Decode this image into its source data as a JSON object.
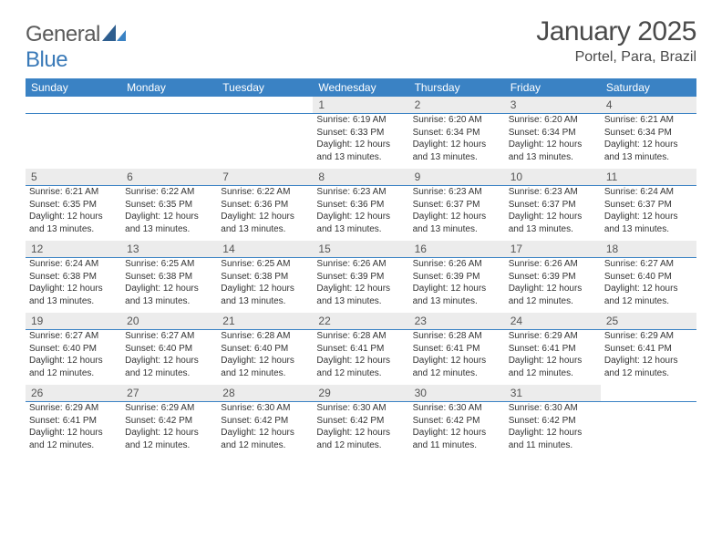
{
  "brand": {
    "name_a": "General",
    "name_b": "Blue"
  },
  "title": "January 2025",
  "location": "Portel, Para, Brazil",
  "colors": {
    "header_bg": "#3a82c4",
    "header_text": "#ffffff",
    "daynum_bg": "#ececec",
    "rule": "#3a82c4",
    "text": "#333333",
    "brand_gray": "#5a5a5a",
    "brand_blue": "#3a7ab8"
  },
  "typography": {
    "title_fontsize": 30,
    "location_fontsize": 16,
    "dayhead_fontsize": 12,
    "daynum_fontsize": 12,
    "cell_fontsize": 10
  },
  "day_headers": [
    "Sunday",
    "Monday",
    "Tuesday",
    "Wednesday",
    "Thursday",
    "Friday",
    "Saturday"
  ],
  "weeks": [
    [
      null,
      null,
      null,
      {
        "n": "1",
        "sr": "6:19 AM",
        "ss": "6:33 PM",
        "dl": "12 hours and 13 minutes."
      },
      {
        "n": "2",
        "sr": "6:20 AM",
        "ss": "6:34 PM",
        "dl": "12 hours and 13 minutes."
      },
      {
        "n": "3",
        "sr": "6:20 AM",
        "ss": "6:34 PM",
        "dl": "12 hours and 13 minutes."
      },
      {
        "n": "4",
        "sr": "6:21 AM",
        "ss": "6:34 PM",
        "dl": "12 hours and 13 minutes."
      }
    ],
    [
      {
        "n": "5",
        "sr": "6:21 AM",
        "ss": "6:35 PM",
        "dl": "12 hours and 13 minutes."
      },
      {
        "n": "6",
        "sr": "6:22 AM",
        "ss": "6:35 PM",
        "dl": "12 hours and 13 minutes."
      },
      {
        "n": "7",
        "sr": "6:22 AM",
        "ss": "6:36 PM",
        "dl": "12 hours and 13 minutes."
      },
      {
        "n": "8",
        "sr": "6:23 AM",
        "ss": "6:36 PM",
        "dl": "12 hours and 13 minutes."
      },
      {
        "n": "9",
        "sr": "6:23 AM",
        "ss": "6:37 PM",
        "dl": "12 hours and 13 minutes."
      },
      {
        "n": "10",
        "sr": "6:23 AM",
        "ss": "6:37 PM",
        "dl": "12 hours and 13 minutes."
      },
      {
        "n": "11",
        "sr": "6:24 AM",
        "ss": "6:37 PM",
        "dl": "12 hours and 13 minutes."
      }
    ],
    [
      {
        "n": "12",
        "sr": "6:24 AM",
        "ss": "6:38 PM",
        "dl": "12 hours and 13 minutes."
      },
      {
        "n": "13",
        "sr": "6:25 AM",
        "ss": "6:38 PM",
        "dl": "12 hours and 13 minutes."
      },
      {
        "n": "14",
        "sr": "6:25 AM",
        "ss": "6:38 PM",
        "dl": "12 hours and 13 minutes."
      },
      {
        "n": "15",
        "sr": "6:26 AM",
        "ss": "6:39 PM",
        "dl": "12 hours and 13 minutes."
      },
      {
        "n": "16",
        "sr": "6:26 AM",
        "ss": "6:39 PM",
        "dl": "12 hours and 13 minutes."
      },
      {
        "n": "17",
        "sr": "6:26 AM",
        "ss": "6:39 PM",
        "dl": "12 hours and 12 minutes."
      },
      {
        "n": "18",
        "sr": "6:27 AM",
        "ss": "6:40 PM",
        "dl": "12 hours and 12 minutes."
      }
    ],
    [
      {
        "n": "19",
        "sr": "6:27 AM",
        "ss": "6:40 PM",
        "dl": "12 hours and 12 minutes."
      },
      {
        "n": "20",
        "sr": "6:27 AM",
        "ss": "6:40 PM",
        "dl": "12 hours and 12 minutes."
      },
      {
        "n": "21",
        "sr": "6:28 AM",
        "ss": "6:40 PM",
        "dl": "12 hours and 12 minutes."
      },
      {
        "n": "22",
        "sr": "6:28 AM",
        "ss": "6:41 PM",
        "dl": "12 hours and 12 minutes."
      },
      {
        "n": "23",
        "sr": "6:28 AM",
        "ss": "6:41 PM",
        "dl": "12 hours and 12 minutes."
      },
      {
        "n": "24",
        "sr": "6:29 AM",
        "ss": "6:41 PM",
        "dl": "12 hours and 12 minutes."
      },
      {
        "n": "25",
        "sr": "6:29 AM",
        "ss": "6:41 PM",
        "dl": "12 hours and 12 minutes."
      }
    ],
    [
      {
        "n": "26",
        "sr": "6:29 AM",
        "ss": "6:41 PM",
        "dl": "12 hours and 12 minutes."
      },
      {
        "n": "27",
        "sr": "6:29 AM",
        "ss": "6:42 PM",
        "dl": "12 hours and 12 minutes."
      },
      {
        "n": "28",
        "sr": "6:30 AM",
        "ss": "6:42 PM",
        "dl": "12 hours and 12 minutes."
      },
      {
        "n": "29",
        "sr": "6:30 AM",
        "ss": "6:42 PM",
        "dl": "12 hours and 12 minutes."
      },
      {
        "n": "30",
        "sr": "6:30 AM",
        "ss": "6:42 PM",
        "dl": "12 hours and 11 minutes."
      },
      {
        "n": "31",
        "sr": "6:30 AM",
        "ss": "6:42 PM",
        "dl": "12 hours and 11 minutes."
      },
      null
    ]
  ],
  "labels": {
    "sunrise": "Sunrise:",
    "sunset": "Sunset:",
    "daylight": "Daylight:"
  }
}
